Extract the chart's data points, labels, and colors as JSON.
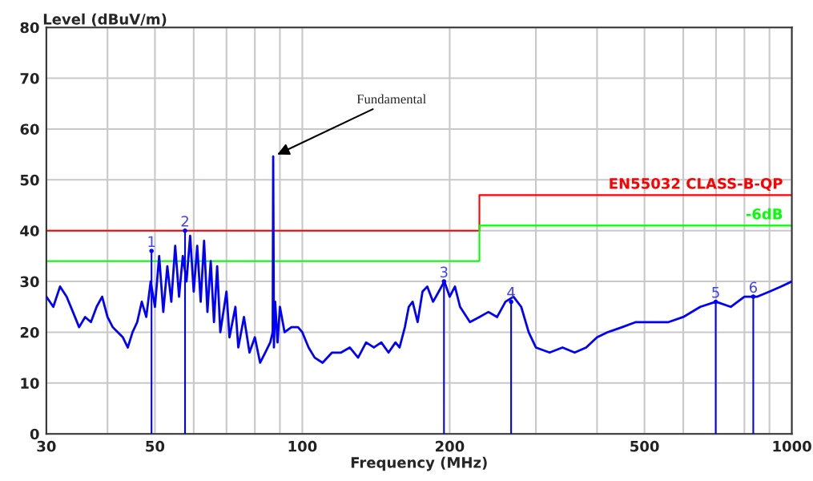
{
  "chart_data": {
    "type": "line",
    "xlabel": "Frequency (MHz)",
    "ylabel": "Level (dBuV/m)",
    "log": "x",
    "grid": true,
    "legend": false,
    "xlim": [
      30,
      1000
    ],
    "ylim": [
      0,
      80
    ],
    "xticks": [
      30,
      {
        "value": 40,
        "label": null
      },
      50,
      {
        "value": 60,
        "label": null
      },
      {
        "value": 70,
        "label": null
      },
      {
        "value": 80,
        "label": null
      },
      {
        "value": 90,
        "label": null
      },
      100,
      200,
      {
        "value": 300,
        "label": null
      },
      {
        "value": 400,
        "label": null
      },
      500,
      {
        "value": 600,
        "label": null
      },
      {
        "value": 700,
        "label": null
      },
      {
        "value": 800,
        "label": null
      },
      {
        "value": 900,
        "label": null
      },
      1000
    ],
    "yticks": [
      0,
      10,
      20,
      30,
      40,
      50,
      60,
      70,
      80
    ],
    "series": [
      {
        "color": "#0000ff",
        "x": [
          30,
          31,
          32,
          33,
          34,
          35,
          36,
          37,
          38,
          39,
          40,
          41,
          42,
          43,
          44,
          45,
          46,
          47,
          48,
          49,
          50,
          51,
          52,
          53,
          54,
          55,
          56,
          57,
          58,
          59,
          60,
          61,
          62,
          63,
          64,
          65,
          66,
          67,
          68,
          70,
          71,
          73,
          74,
          76,
          78,
          80,
          82,
          84,
          86,
          87,
          87.2,
          87.5,
          88,
          89,
          90,
          92,
          95,
          98,
          100,
          103,
          106,
          110,
          115,
          120,
          125,
          130,
          135,
          140,
          145,
          150,
          155,
          158,
          162,
          165,
          168,
          172,
          176,
          180,
          185,
          190,
          195,
          200,
          205,
          210,
          220,
          230,
          240,
          250,
          260,
          270,
          280,
          290,
          300,
          320,
          340,
          360,
          380,
          400,
          420,
          450,
          480,
          520,
          560,
          600,
          650,
          700,
          750,
          800,
          850,
          900,
          950,
          1000
        ],
        "values": [
          27,
          25,
          29,
          27,
          24,
          21,
          23,
          22,
          25,
          27,
          23,
          21,
          20,
          19,
          17,
          20,
          22,
          26,
          23,
          30,
          25,
          35,
          24,
          33,
          26,
          37,
          27,
          35,
          30,
          39,
          28,
          37,
          26,
          38,
          24,
          34,
          22,
          33,
          20,
          28,
          19,
          25,
          17,
          23,
          16,
          19,
          14,
          16,
          18,
          20,
          54.6,
          17,
          26,
          18,
          25,
          20,
          21,
          21,
          20,
          17,
          15,
          14,
          16,
          16,
          17,
          15,
          18,
          17,
          18,
          16,
          18,
          17,
          21,
          25,
          26,
          22,
          28,
          29,
          26,
          28,
          30,
          27,
          29,
          25,
          22,
          23,
          24,
          23,
          26,
          27,
          25,
          20,
          17,
          16,
          17,
          16,
          17,
          19,
          20,
          21,
          22,
          22,
          22,
          23,
          25,
          26,
          25,
          27,
          27,
          28,
          29,
          30
        ]
      },
      {
        "type": "lollipop",
        "color": "#0000ff",
        "x": [
          49.2,
          57.6,
          194.7,
          267,
          699,
          834
        ],
        "values": [
          36,
          40,
          30,
          26,
          26,
          27
        ]
      },
      {
        "type": "step",
        "name": "EN55032 CLASS-B-QP",
        "color": "#ff0000",
        "x": [
          30,
          230,
          1000
        ],
        "values": [
          40,
          47,
          47
        ]
      },
      {
        "type": "step",
        "name": "-6dB",
        "color": "#00ff00",
        "x": [
          30,
          230,
          1000
        ],
        "values": [
          34,
          41,
          41
        ]
      }
    ],
    "annotations": [
      {
        "text": "Fundamental",
        "x": 87.2,
        "y": 54.6
      },
      {
        "text": "1",
        "x": 49.2,
        "y": 36
      },
      {
        "text": "2",
        "x": 57.6,
        "y": 40
      },
      {
        "text": "3",
        "x": 194.7,
        "y": 30
      },
      {
        "text": "4",
        "x": 267,
        "y": 26
      },
      {
        "text": "5",
        "x": 699,
        "y": 26
      },
      {
        "text": "6",
        "x": 834,
        "y": 27
      }
    ]
  }
}
